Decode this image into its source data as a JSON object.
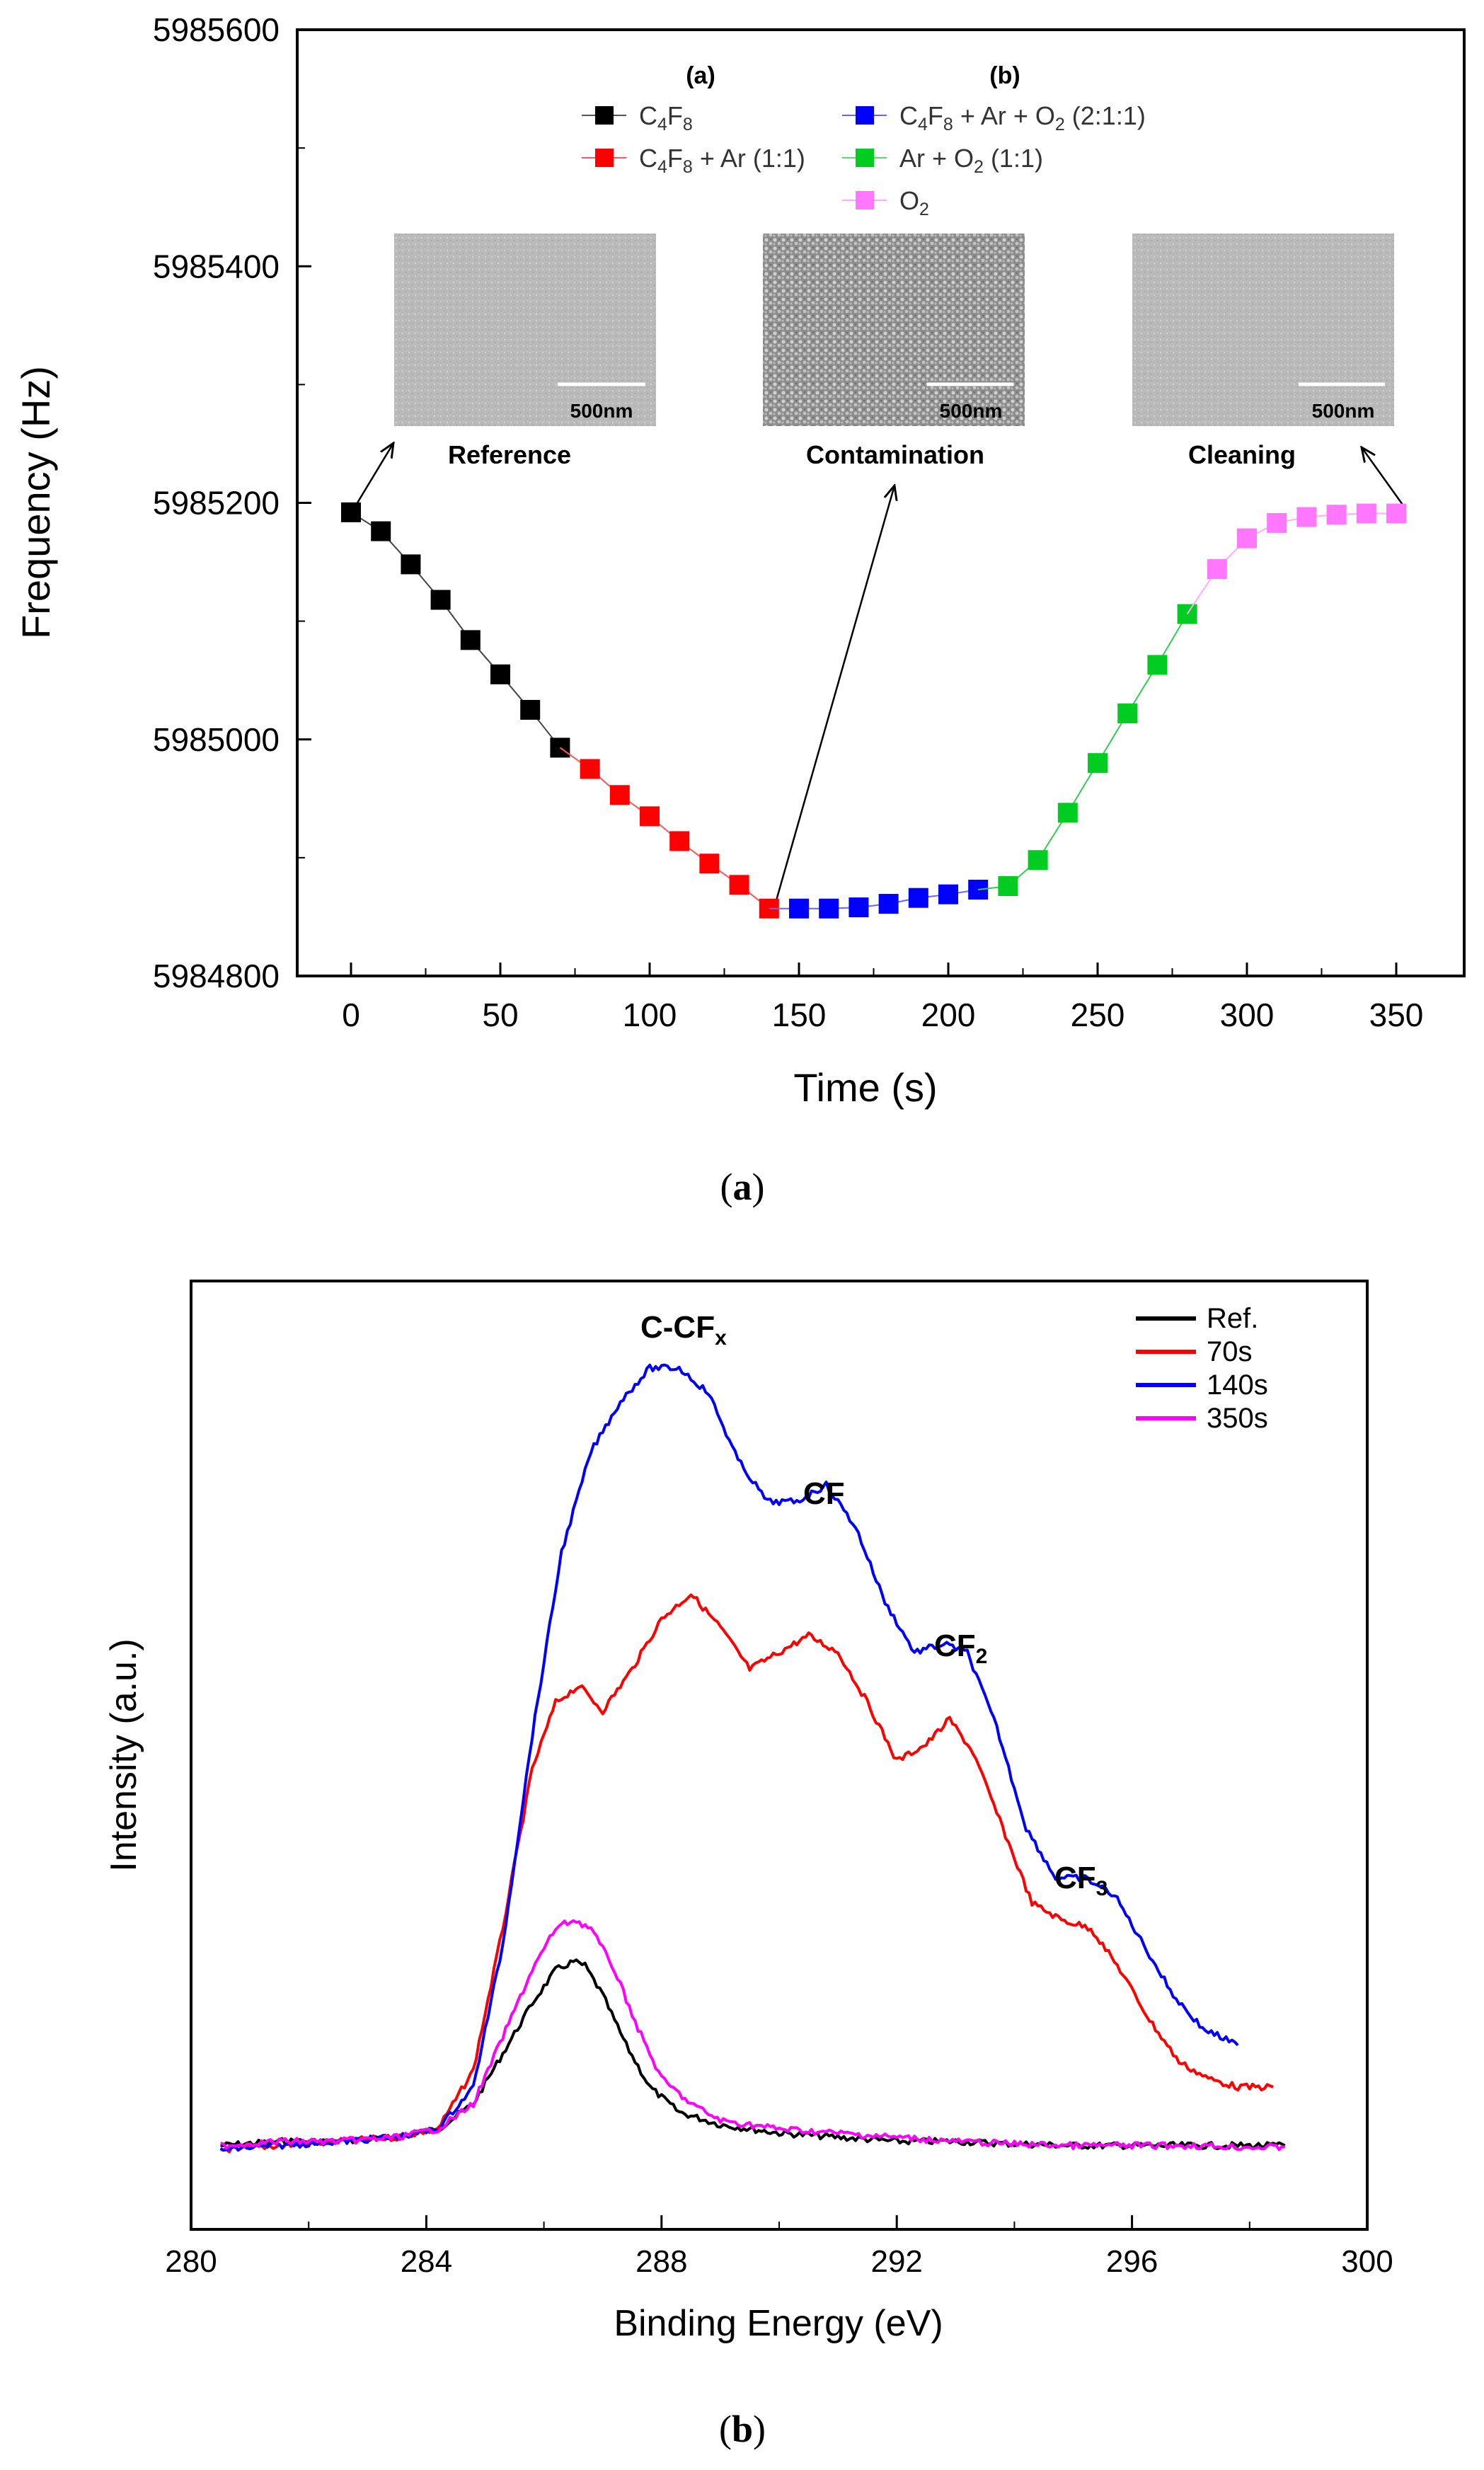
{
  "chart_data": [
    {
      "type": "line",
      "panel_label": "(a)",
      "xlabel": "Time (s)",
      "ylabel": "Frequency (Hz)",
      "xlim": [
        -10,
        360
      ],
      "ylim": [
        5984800,
        5985600
      ],
      "xticks": [
        "0",
        "50",
        "100",
        "150",
        "200",
        "250",
        "300",
        "350"
      ],
      "yticks": [
        "5984800",
        "5985000",
        "5985200",
        "5985400",
        "5985600"
      ],
      "legend_headers": [
        "(a)",
        "(b)"
      ],
      "legend": [
        {
          "label": "C4F8"
        },
        {
          "label": "C4F8 + Ar (1:1)"
        },
        {
          "label": "C4F8 + Ar + O2 (2:1:1)"
        },
        {
          "label": "Ar + O2 (1:1)"
        },
        {
          "label": "O2"
        }
      ],
      "series": [
        {
          "name": "C4F8",
          "color": "#000000",
          "x": [
            0,
            10,
            20,
            30,
            40,
            50,
            60,
            70
          ],
          "y": [
            5985192,
            5985176,
            5985148,
            5985118,
            5985084,
            5985055,
            5985025,
            5984993
          ]
        },
        {
          "name": "C4F8 + Ar (1:1)",
          "color": "#ff0000",
          "x": [
            80,
            90,
            100,
            110,
            120,
            130,
            140
          ],
          "y": [
            5984975,
            5984953,
            5984935,
            5984914,
            5984895,
            5984877,
            5984857
          ]
        },
        {
          "name": "C4F8 + Ar + O2 (2:1:1)",
          "color": "#0000ff",
          "x": [
            150,
            160,
            170,
            180,
            190,
            200,
            210
          ],
          "y": [
            5984857,
            5984857,
            5984858,
            5984861,
            5984866,
            5984869,
            5984873
          ]
        },
        {
          "name": "Ar + O2 (1:1)",
          "color": "#00cc22",
          "x": [
            220,
            230,
            240,
            250,
            260,
            270,
            280
          ],
          "y": [
            5984876,
            5984898,
            5984938,
            5984980,
            5985022,
            5985063,
            5985106
          ]
        },
        {
          "name": "O2",
          "color": "#ff77ff",
          "x": [
            290,
            300,
            310,
            320,
            330,
            340,
            350
          ],
          "y": [
            5985144,
            5985170,
            5985183,
            5985188,
            5985190,
            5985191,
            5985191
          ]
        }
      ],
      "insets": [
        {
          "caption": "Reference",
          "scale_bar": "500nm",
          "points_to_time": 0
        },
        {
          "caption": "Contamination",
          "scale_bar": "500nm",
          "points_to_time": 140
        },
        {
          "caption": "Cleaning",
          "scale_bar": "500nm",
          "points_to_time": 350
        }
      ]
    },
    {
      "type": "line",
      "panel_label": "(b)",
      "xlabel": "Binding Energy (eV)",
      "ylabel": "Intensity (a.u.)",
      "xlim": [
        280,
        300
      ],
      "ylim": [
        0,
        1
      ],
      "xticks": [
        "280",
        "284",
        "288",
        "292",
        "296",
        "300"
      ],
      "legend": [
        "Ref.",
        "70s",
        "140s",
        "350s"
      ],
      "series": [
        {
          "name": "Ref.",
          "color": "#000000",
          "x": [
            280.5,
            281.5,
            282.5,
            283.5,
            284.2,
            284.8,
            285.3,
            285.8,
            286.2,
            286.5,
            286.7,
            287.0,
            287.4,
            287.8,
            288.3,
            289.0,
            290.0,
            291.0,
            292.0,
            293.0,
            294.0,
            295.0,
            296.0,
            297.0,
            298.0,
            298.6
          ],
          "y": [
            0.07,
            0.075,
            0.075,
            0.08,
            0.09,
            0.12,
            0.18,
            0.24,
            0.28,
            0.29,
            0.285,
            0.25,
            0.19,
            0.14,
            0.11,
            0.095,
            0.085,
            0.08,
            0.075,
            0.075,
            0.072,
            0.07,
            0.07,
            0.07,
            0.07,
            0.07
          ]
        },
        {
          "name": "70s",
          "color": "#ff0000",
          "x": [
            280.5,
            281.5,
            282.5,
            283.5,
            284.2,
            284.8,
            285.3,
            285.8,
            286.2,
            286.6,
            287.0,
            287.5,
            288.0,
            288.5,
            289.0,
            289.5,
            290.0,
            290.5,
            291.0,
            291.5,
            292.0,
            292.5,
            292.9,
            293.3,
            293.8,
            294.3,
            294.8,
            295.3,
            295.8,
            296.3,
            296.8,
            297.3,
            297.8,
            298.4
          ],
          "y": [
            0.065,
            0.07,
            0.075,
            0.08,
            0.09,
            0.16,
            0.33,
            0.52,
            0.6,
            0.62,
            0.59,
            0.64,
            0.7,
            0.73,
            0.69,
            0.64,
            0.66,
            0.68,
            0.66,
            0.6,
            0.53,
            0.55,
            0.58,
            0.54,
            0.45,
            0.36,
            0.34,
            0.33,
            0.28,
            0.22,
            0.17,
            0.15,
            0.14,
            0.14
          ]
        },
        {
          "name": "140s",
          "color": "#0000ff",
          "x": [
            280.5,
            281.5,
            282.5,
            283.5,
            284.2,
            284.8,
            285.3,
            285.8,
            286.3,
            286.8,
            287.3,
            287.8,
            288.3,
            288.8,
            289.3,
            289.8,
            290.3,
            290.8,
            291.3,
            291.8,
            292.3,
            292.8,
            293.2,
            293.7,
            294.2,
            294.7,
            295.2,
            295.7,
            296.2,
            296.7,
            297.2,
            297.8
          ],
          "y": [
            0.065,
            0.07,
            0.075,
            0.08,
            0.09,
            0.14,
            0.31,
            0.56,
            0.78,
            0.9,
            0.96,
            1.0,
            1.0,
            0.97,
            0.89,
            0.84,
            0.84,
            0.86,
            0.81,
            0.72,
            0.66,
            0.67,
            0.66,
            0.57,
            0.45,
            0.39,
            0.39,
            0.37,
            0.31,
            0.25,
            0.21,
            0.19
          ]
        },
        {
          "name": "350s",
          "color": "#ff00ff",
          "x": [
            280.5,
            281.5,
            282.5,
            283.5,
            284.2,
            284.8,
            285.3,
            285.8,
            286.2,
            286.5,
            286.8,
            287.2,
            287.6,
            288.0,
            288.5,
            289.0,
            290.0,
            291.0,
            292.0,
            293.0,
            294.0,
            295.0,
            296.0,
            297.0,
            298.0,
            298.6
          ],
          "y": [
            0.07,
            0.075,
            0.075,
            0.08,
            0.09,
            0.12,
            0.2,
            0.28,
            0.33,
            0.34,
            0.33,
            0.28,
            0.21,
            0.15,
            0.12,
            0.1,
            0.09,
            0.085,
            0.08,
            0.075,
            0.072,
            0.07,
            0.07,
            0.07,
            0.068,
            0.068
          ]
        }
      ],
      "annotations": [
        {
          "main": "C-CF",
          "sub": "x",
          "at_x": 288.3
        },
        {
          "main": "CF",
          "sub": "",
          "at_x": 290.9
        },
        {
          "main": "CF",
          "sub": "2",
          "at_x": 293.3
        },
        {
          "main": "CF",
          "sub": "3",
          "at_x": 295.5
        }
      ]
    }
  ],
  "texts": {
    "caption_a_open": "(",
    "caption_a_letter": "a",
    "caption_a_close": ")",
    "caption_b_open": "(",
    "caption_b_letter": "b",
    "caption_b_close": ")"
  }
}
